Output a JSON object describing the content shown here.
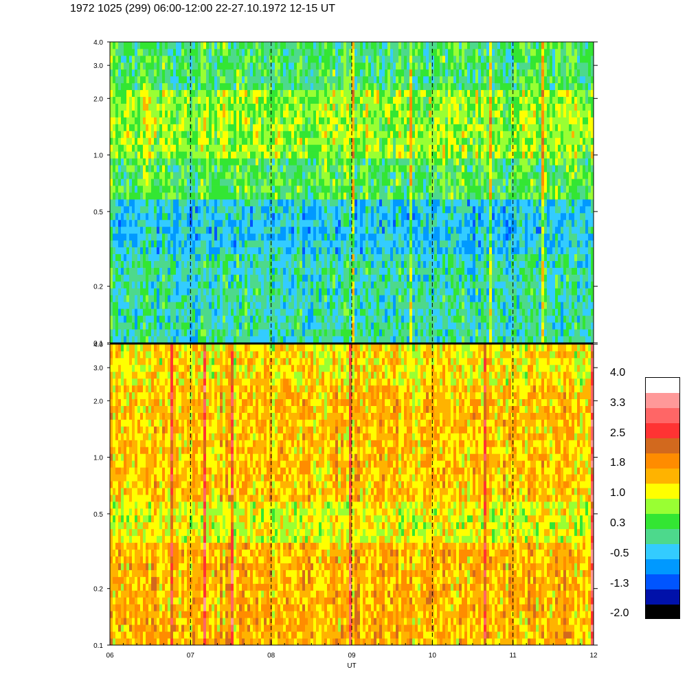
{
  "title": "1972 1025 (299) 06:00-12:00 22-27.10.1972  12-15 UT",
  "chart_data": {
    "type": "heatmap",
    "title": "1972 1025 (299) 06:00-12:00 22-27.10.1972  12-15 UT",
    "xlabel": "UT",
    "x_ticks": [
      "06",
      "07",
      "08",
      "09",
      "10",
      "11",
      "12"
    ],
    "x_range": [
      6,
      12
    ],
    "dashed_hour_lines": [
      7,
      8,
      9,
      10,
      11
    ],
    "panels": [
      {
        "name": "upper",
        "y_scale": "log",
        "y_range": [
          0.1,
          4.0
        ],
        "y_ticks": [
          "0.1",
          "0.2",
          "0.5",
          "1.0",
          "2.0",
          "3.0",
          "4.0"
        ],
        "y_tick_values": [
          0.1,
          0.2,
          0.5,
          1.0,
          2.0,
          3.0,
          4.0
        ],
        "dominant_levels": [
          {
            "y_from": 0.1,
            "y_to": 0.3,
            "level": 0.0
          },
          {
            "y_from": 0.3,
            "y_to": 0.6,
            "level": -0.3
          },
          {
            "y_from": 0.6,
            "y_to": 1.0,
            "level": 0.4
          },
          {
            "y_from": 1.0,
            "y_to": 2.2,
            "level": 0.8
          },
          {
            "y_from": 2.2,
            "y_to": 4.0,
            "level": 0.3
          }
        ]
      },
      {
        "name": "lower",
        "y_scale": "log",
        "y_range": [
          0.1,
          4.0
        ],
        "y_ticks": [
          "0.1",
          "0.2",
          "0.5",
          "1.0",
          "2.0",
          "3.0",
          "4.0"
        ],
        "y_tick_values": [
          0.1,
          0.2,
          0.5,
          1.0,
          2.0,
          3.0,
          4.0
        ],
        "dominant_levels": [
          {
            "y_from": 0.1,
            "y_to": 0.35,
            "level": 1.6
          },
          {
            "y_from": 0.35,
            "y_to": 0.6,
            "level": 1.1
          },
          {
            "y_from": 0.6,
            "y_to": 2.5,
            "level": 1.5
          },
          {
            "y_from": 2.5,
            "y_to": 4.0,
            "level": 1.3
          }
        ]
      }
    ],
    "colorbar": {
      "labels": [
        "4.0",
        "3.3",
        "2.5",
        "1.8",
        "1.0",
        "0.3",
        "-0.5",
        "-1.3",
        "-2.0"
      ],
      "label_values": [
        4.0,
        3.3,
        2.5,
        1.8,
        1.0,
        0.3,
        -0.5,
        -1.3,
        -2.0
      ],
      "colors": [
        "#ffffff",
        "#ff9999",
        "#ff6666",
        "#ff3333",
        "#d2691e",
        "#ff8c00",
        "#ffb300",
        "#ffff00",
        "#99ff33",
        "#33e633",
        "#4dd98c",
        "#33ccff",
        "#0099ff",
        "#0055ff",
        "#0011aa",
        "#000000"
      ]
    }
  }
}
